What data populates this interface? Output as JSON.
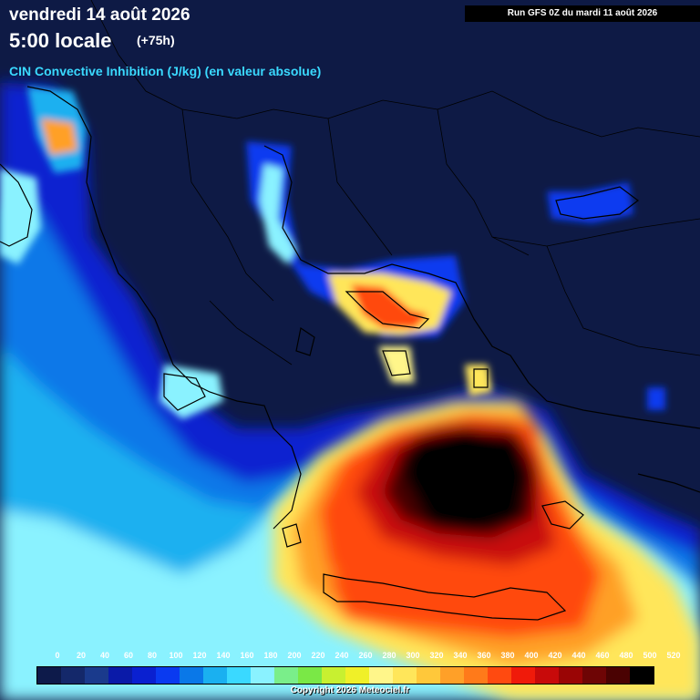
{
  "header": {
    "date": "vendredi 14 août 2026",
    "time": "5:00 locale",
    "lead": "(+75h)",
    "parameter": "CIN Convective Inhibition (J/kg) (en valeur absolue)",
    "run": "Run GFS 0Z du mardi 11 août 2026"
  },
  "legend": {
    "labels": [
      "0",
      "20",
      "40",
      "60",
      "80",
      "100",
      "120",
      "140",
      "160",
      "180",
      "200",
      "220",
      "240",
      "260",
      "280",
      "300",
      "320",
      "340",
      "360",
      "380",
      "400",
      "420",
      "440",
      "460",
      "480",
      "500",
      "520"
    ],
    "colors": [
      "#0d1a4a",
      "#14286a",
      "#1a3a8c",
      "#0a1aa8",
      "#0a20d0",
      "#0a3af0",
      "#0a78e8",
      "#1ab0f0",
      "#3ad9ff",
      "#8af2ff",
      "#7aee8a",
      "#7ae846",
      "#c8f030",
      "#f0f028",
      "#fff68a",
      "#ffe65a",
      "#ffc83a",
      "#ffa028",
      "#ff7a1a",
      "#ff4a10",
      "#f01a0a",
      "#c80a0a",
      "#9a0505",
      "#6e0505",
      "#4a0202",
      "#000000"
    ]
  },
  "copyright": "Copyright 2026 Meteociel.fr"
}
